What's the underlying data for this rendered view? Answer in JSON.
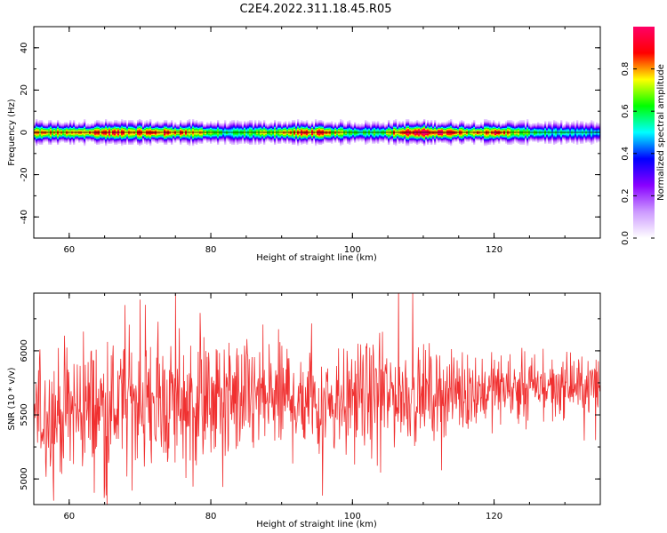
{
  "figure_title": "C2E4.2022.311.18.45.R05",
  "chart_data": [
    {
      "type": "heatmap",
      "panel": "spectrogram",
      "xlabel": "Height of straight line (km)",
      "ylabel": "Frequency (Hz)",
      "xlim": [
        55,
        135
      ],
      "ylim": [
        -50,
        50
      ],
      "xticks": [
        60,
        80,
        100,
        120
      ],
      "xtick_labels": [
        "60",
        "80",
        "100",
        "120"
      ],
      "yticks": [
        -40,
        -20,
        0,
        20,
        40
      ],
      "ytick_labels": [
        "-40",
        "-20",
        "0",
        "20",
        "40"
      ],
      "colorbar": {
        "label": "Normalized spectral amplitude",
        "range": [
          0,
          1
        ],
        "ticks": [
          0.0,
          0.2,
          0.4,
          0.6,
          0.8
        ],
        "tick_labels": [
          "0.0",
          "0.2",
          "0.4",
          "0.6",
          "0.8"
        ],
        "colormap": [
          "#ffffff",
          "#cc99ff",
          "#8800ff",
          "#0000ff",
          "#00ffff",
          "#00ff00",
          "#ffff00",
          "#ff0000",
          "#ff0066"
        ]
      },
      "band": {
        "center_hz": 0,
        "core_halfwidth_hz": 1,
        "halo_halfwidth_hz": 5,
        "intensity_profile": [
          {
            "x": 55,
            "amp": 0.8
          },
          {
            "x": 60,
            "amp": 0.75
          },
          {
            "x": 65,
            "amp": 0.9
          },
          {
            "x": 70,
            "amp": 0.85
          },
          {
            "x": 75,
            "amp": 0.85
          },
          {
            "x": 78,
            "amp": 0.8
          },
          {
            "x": 82,
            "amp": 0.55
          },
          {
            "x": 87,
            "amp": 0.7
          },
          {
            "x": 90,
            "amp": 0.75
          },
          {
            "x": 94,
            "amp": 0.9
          },
          {
            "x": 97,
            "amp": 0.75
          },
          {
            "x": 101,
            "amp": 0.6
          },
          {
            "x": 104,
            "amp": 0.65
          },
          {
            "x": 108,
            "amp": 0.95
          },
          {
            "x": 112,
            "amp": 0.95
          },
          {
            "x": 116,
            "amp": 0.75
          },
          {
            "x": 120,
            "amp": 0.9
          },
          {
            "x": 125,
            "amp": 0.6
          },
          {
            "x": 130,
            "amp": 0.5
          },
          {
            "x": 135,
            "amp": 0.5
          }
        ]
      }
    },
    {
      "type": "line",
      "panel": "snr",
      "xlabel": "Height of straight line (km)",
      "ylabel": "SNR (10 * v/v)",
      "xlim": [
        55,
        135
      ],
      "ylim": [
        4800,
        6450
      ],
      "xticks": [
        60,
        80,
        100,
        120
      ],
      "xtick_labels": [
        "60",
        "80",
        "100",
        "120"
      ],
      "yticks": [
        5000,
        5500,
        6000
      ],
      "ytick_labels": [
        "5000",
        "5500",
        "6000"
      ],
      "series": [
        {
          "color": "#f03030",
          "n_points": 1200,
          "envelope": [
            {
              "x": 55,
              "mean": 5500,
              "spread": 220
            },
            {
              "x": 65,
              "mean": 5560,
              "spread": 260
            },
            {
              "x": 75,
              "mean": 5600,
              "spread": 250
            },
            {
              "x": 85,
              "mean": 5620,
              "spread": 230
            },
            {
              "x": 95,
              "mean": 5630,
              "spread": 220
            },
            {
              "x": 105,
              "mean": 5650,
              "spread": 200
            },
            {
              "x": 115,
              "mean": 5680,
              "spread": 150
            },
            {
              "x": 125,
              "mean": 5720,
              "spread": 120
            },
            {
              "x": 135,
              "mean": 5720,
              "spread": 110
            }
          ],
          "spikes": [
            {
              "x": 57.8,
              "y": 4830
            },
            {
              "x": 70,
              "y": 6400
            },
            {
              "x": 75,
              "y": 6450
            },
            {
              "x": 95.8,
              "y": 4870
            },
            {
              "x": 104,
              "y": 5050
            },
            {
              "x": 108.5,
              "y": 6450
            },
            {
              "x": 77.5,
              "y": 4940
            },
            {
              "x": 62,
              "y": 6150
            }
          ]
        }
      ]
    }
  ]
}
